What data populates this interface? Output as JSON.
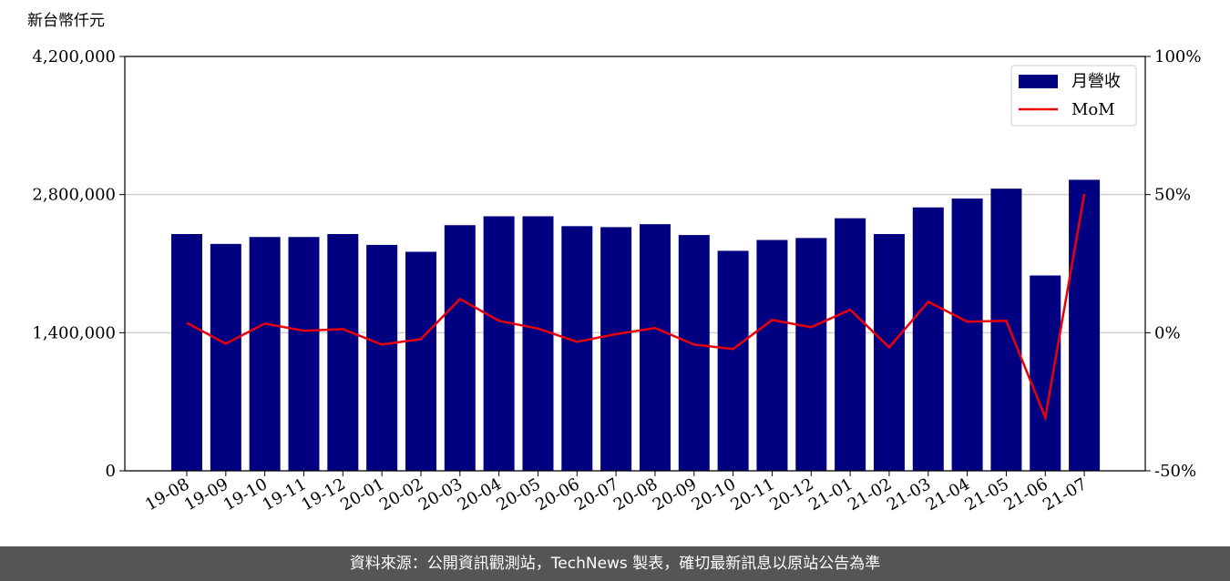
{
  "chart_data": {
    "type": "bar_line",
    "y_label": "新台幣仟元",
    "categories": [
      "19-08",
      "19-09",
      "19-10",
      "19-11",
      "19-12",
      "20-01",
      "20-02",
      "20-03",
      "20-04",
      "20-05",
      "20-06",
      "20-07",
      "20-08",
      "20-09",
      "20-10",
      "20-11",
      "20-12",
      "21-01",
      "21-02",
      "21-03",
      "21-04",
      "21-05",
      "21-06",
      "21-07"
    ],
    "series": [
      {
        "name": "月營收",
        "color": "#000080",
        "type": "bar",
        "values": [
          2400000,
          2300000,
          2370000,
          2370000,
          2400000,
          2290000,
          2220000,
          2490000,
          2580000,
          2580000,
          2480000,
          2470000,
          2500000,
          2390000,
          2230000,
          2340000,
          2360000,
          2560000,
          2400000,
          2670000,
          2760000,
          2860000,
          1980000,
          2950000
        ]
      },
      {
        "name": "MoM",
        "color": "#e8000b",
        "type": "line",
        "axis": "y2",
        "values": [
          3.6,
          -4.0,
          3.3,
          0.7,
          1.3,
          -4.3,
          -2.3,
          12.2,
          4.3,
          1.5,
          -3.3,
          -0.5,
          1.7,
          -4.3,
          -5.9,
          4.6,
          2.0,
          8.3,
          -5.3,
          11.2,
          4.0,
          4.3,
          -30.7,
          50.2
        ]
      }
    ],
    "ylim": [
      0,
      4200000
    ],
    "yticks": [
      0,
      {
        "value": 1400000,
        "label": "1,400,000"
      },
      {
        "value": 2800000,
        "label": "2,800,000"
      },
      {
        "value": 4200000,
        "label": "4,200,000"
      }
    ],
    "y2lim": [
      -50,
      100
    ],
    "y2ticks": [
      {
        "value": -50,
        "label": "-50%"
      },
      {
        "value": 0,
        "label": "0%"
      },
      {
        "value": 50,
        "label": "50%"
      },
      {
        "value": 100,
        "label": "100%"
      }
    ],
    "grid": true,
    "legend": "upper right"
  },
  "footer": {
    "text": "資料來源：公開資訊觀測站，TechNews 製表，確切最新訊息以原站公告為準"
  }
}
